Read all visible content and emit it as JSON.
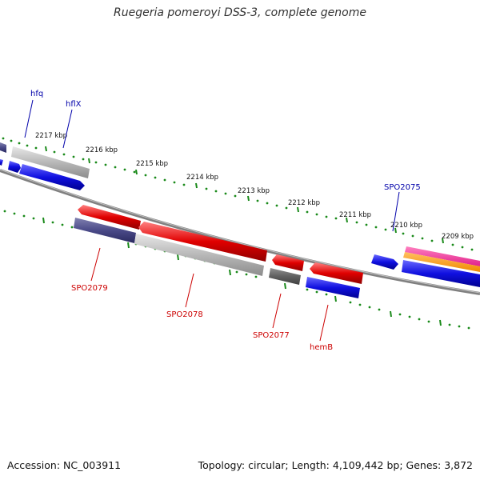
{
  "title": "Ruegeria pomeroyi DSS-3, complete genome",
  "footer": {
    "accession": "Accession: NC_003911",
    "summary": "Topology: circular; Length: 4,109,442 bp; Genes: 3,872"
  },
  "ticks": [
    "2217 kbp",
    "2216 kbp",
    "2215 kbp",
    "2214 kbp",
    "2213 kbp",
    "2212 kbp",
    "2211 kbp",
    "2210 kbp",
    "2209 kbp"
  ],
  "genes": {
    "hfq": "hfq",
    "hflX": "hflX",
    "SPO2075": "SPO2075",
    "SPO2079": "SPO2079",
    "SPO2078": "SPO2078",
    "SPO2077": "SPO2077",
    "hemB": "hemB"
  },
  "colors": {
    "forward_label": "#0000aa",
    "reverse_label": "#cc0000",
    "cds_blue": "#1010e0",
    "cds_red": "#e00000",
    "cds_gray": "#b8b8b8",
    "cds_dark": "#4a4a88",
    "tick_green": "#1a8a1a",
    "backbone": "#808080"
  }
}
